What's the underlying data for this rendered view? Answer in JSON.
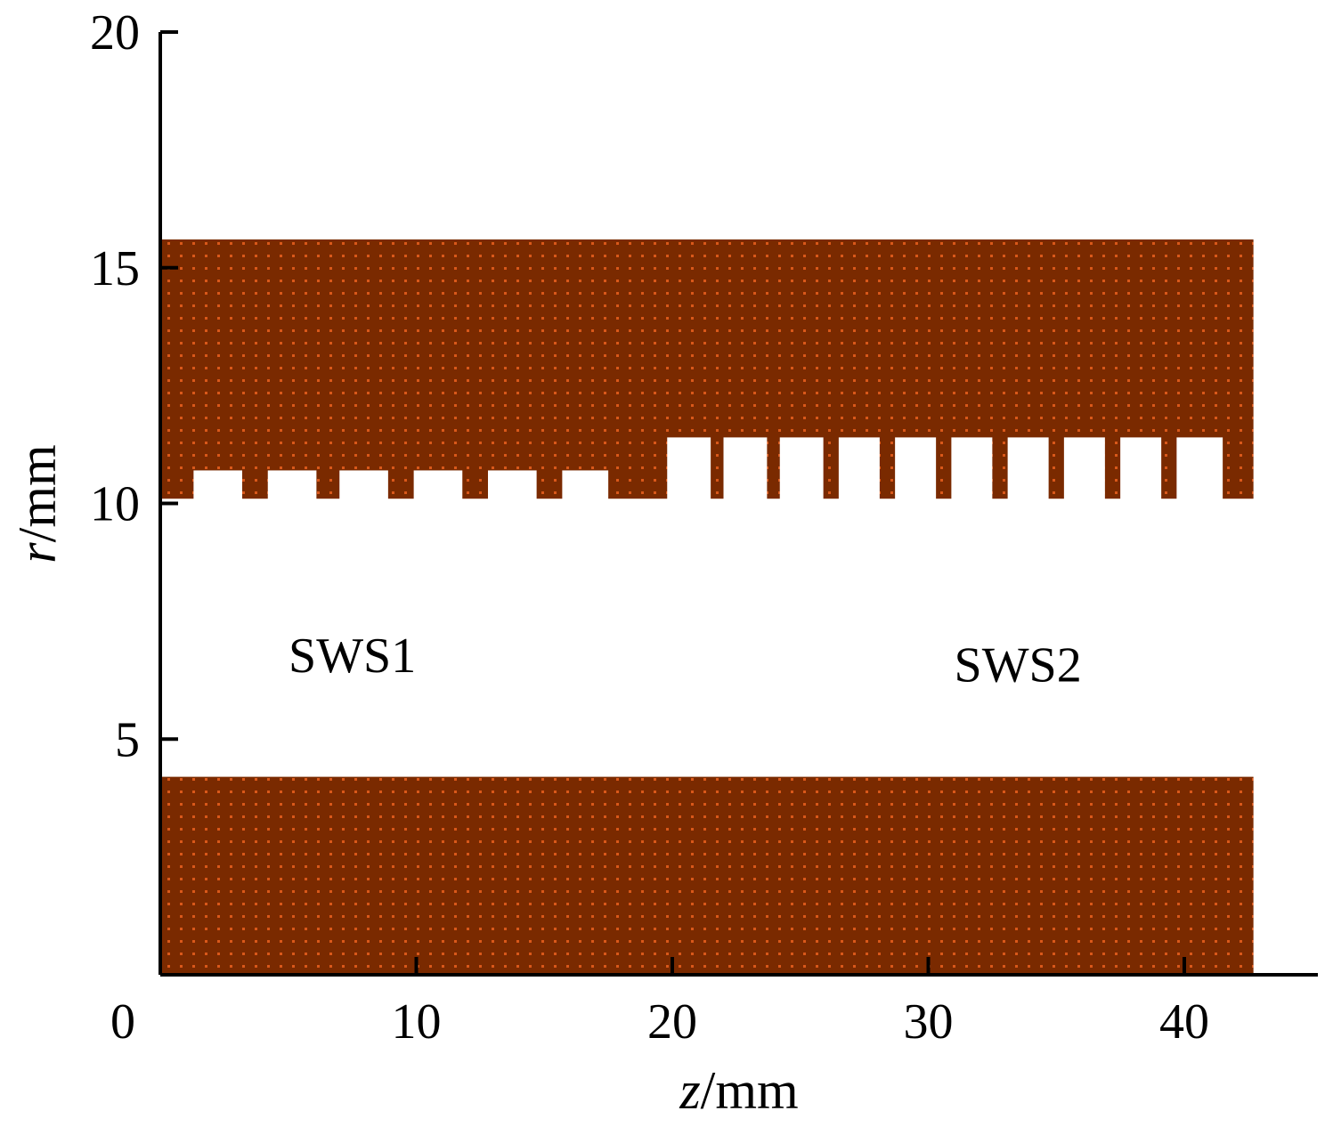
{
  "chart_data": {
    "type": "diagram",
    "xlabel": {
      "var": "z",
      "unit": "/mm"
    },
    "ylabel": {
      "var": "r",
      "unit": "/mm"
    },
    "xlim": [
      0,
      45
    ],
    "ylim": [
      0,
      20
    ],
    "x_ticks": [
      0,
      10,
      20,
      30,
      40
    ],
    "y_ticks": [
      5,
      10,
      15,
      20
    ],
    "x_tick_labels": [
      "0",
      "10",
      "20",
      "30",
      "40"
    ],
    "y_tick_labels": [
      "5",
      "10",
      "15",
      "20"
    ],
    "material_color": "#7a2a00",
    "material_dot_color": "#d9581a",
    "inner_conductor": {
      "z": [
        0,
        42.7
      ],
      "r": [
        0,
        4.2
      ]
    },
    "outer_conductor": {
      "z_range": [
        0,
        42.7
      ],
      "r_outer": 15.6,
      "r_inner": 10.1,
      "open_slots": [
        {
          "z": [
            1.3,
            3.2
          ],
          "r_top": 10.7
        },
        {
          "z": [
            4.2,
            6.1
          ],
          "r_top": 10.7
        },
        {
          "z": [
            7.0,
            8.9
          ],
          "r_top": 10.7
        },
        {
          "z": [
            9.9,
            11.8
          ],
          "r_top": 10.7
        },
        {
          "z": [
            12.8,
            14.7
          ],
          "r_top": 10.7
        },
        {
          "z": [
            15.7,
            17.5
          ],
          "r_top": 10.7
        },
        {
          "z": [
            19.8,
            21.5
          ],
          "r_top": 11.4
        },
        {
          "z": [
            22.0,
            23.7
          ],
          "r_top": 11.4
        },
        {
          "z": [
            24.2,
            25.9
          ],
          "r_top": 11.4
        },
        {
          "z": [
            26.5,
            28.1
          ],
          "r_top": 11.4
        },
        {
          "z": [
            28.7,
            30.3
          ],
          "r_top": 11.4
        },
        {
          "z": [
            30.9,
            32.5
          ],
          "r_top": 11.4
        },
        {
          "z": [
            33.1,
            34.7
          ],
          "r_top": 11.4
        },
        {
          "z": [
            35.3,
            36.9
          ],
          "r_top": 11.4
        },
        {
          "z": [
            37.5,
            39.1
          ],
          "r_top": 11.4
        },
        {
          "z": [
            39.7,
            41.5
          ],
          "r_top": 11.4
        }
      ]
    },
    "annotations": [
      {
        "text": "SWS1",
        "z": 7.5,
        "r": 6.8
      },
      {
        "text": "SWS2",
        "z": 33.5,
        "r": 6.6
      }
    ]
  }
}
